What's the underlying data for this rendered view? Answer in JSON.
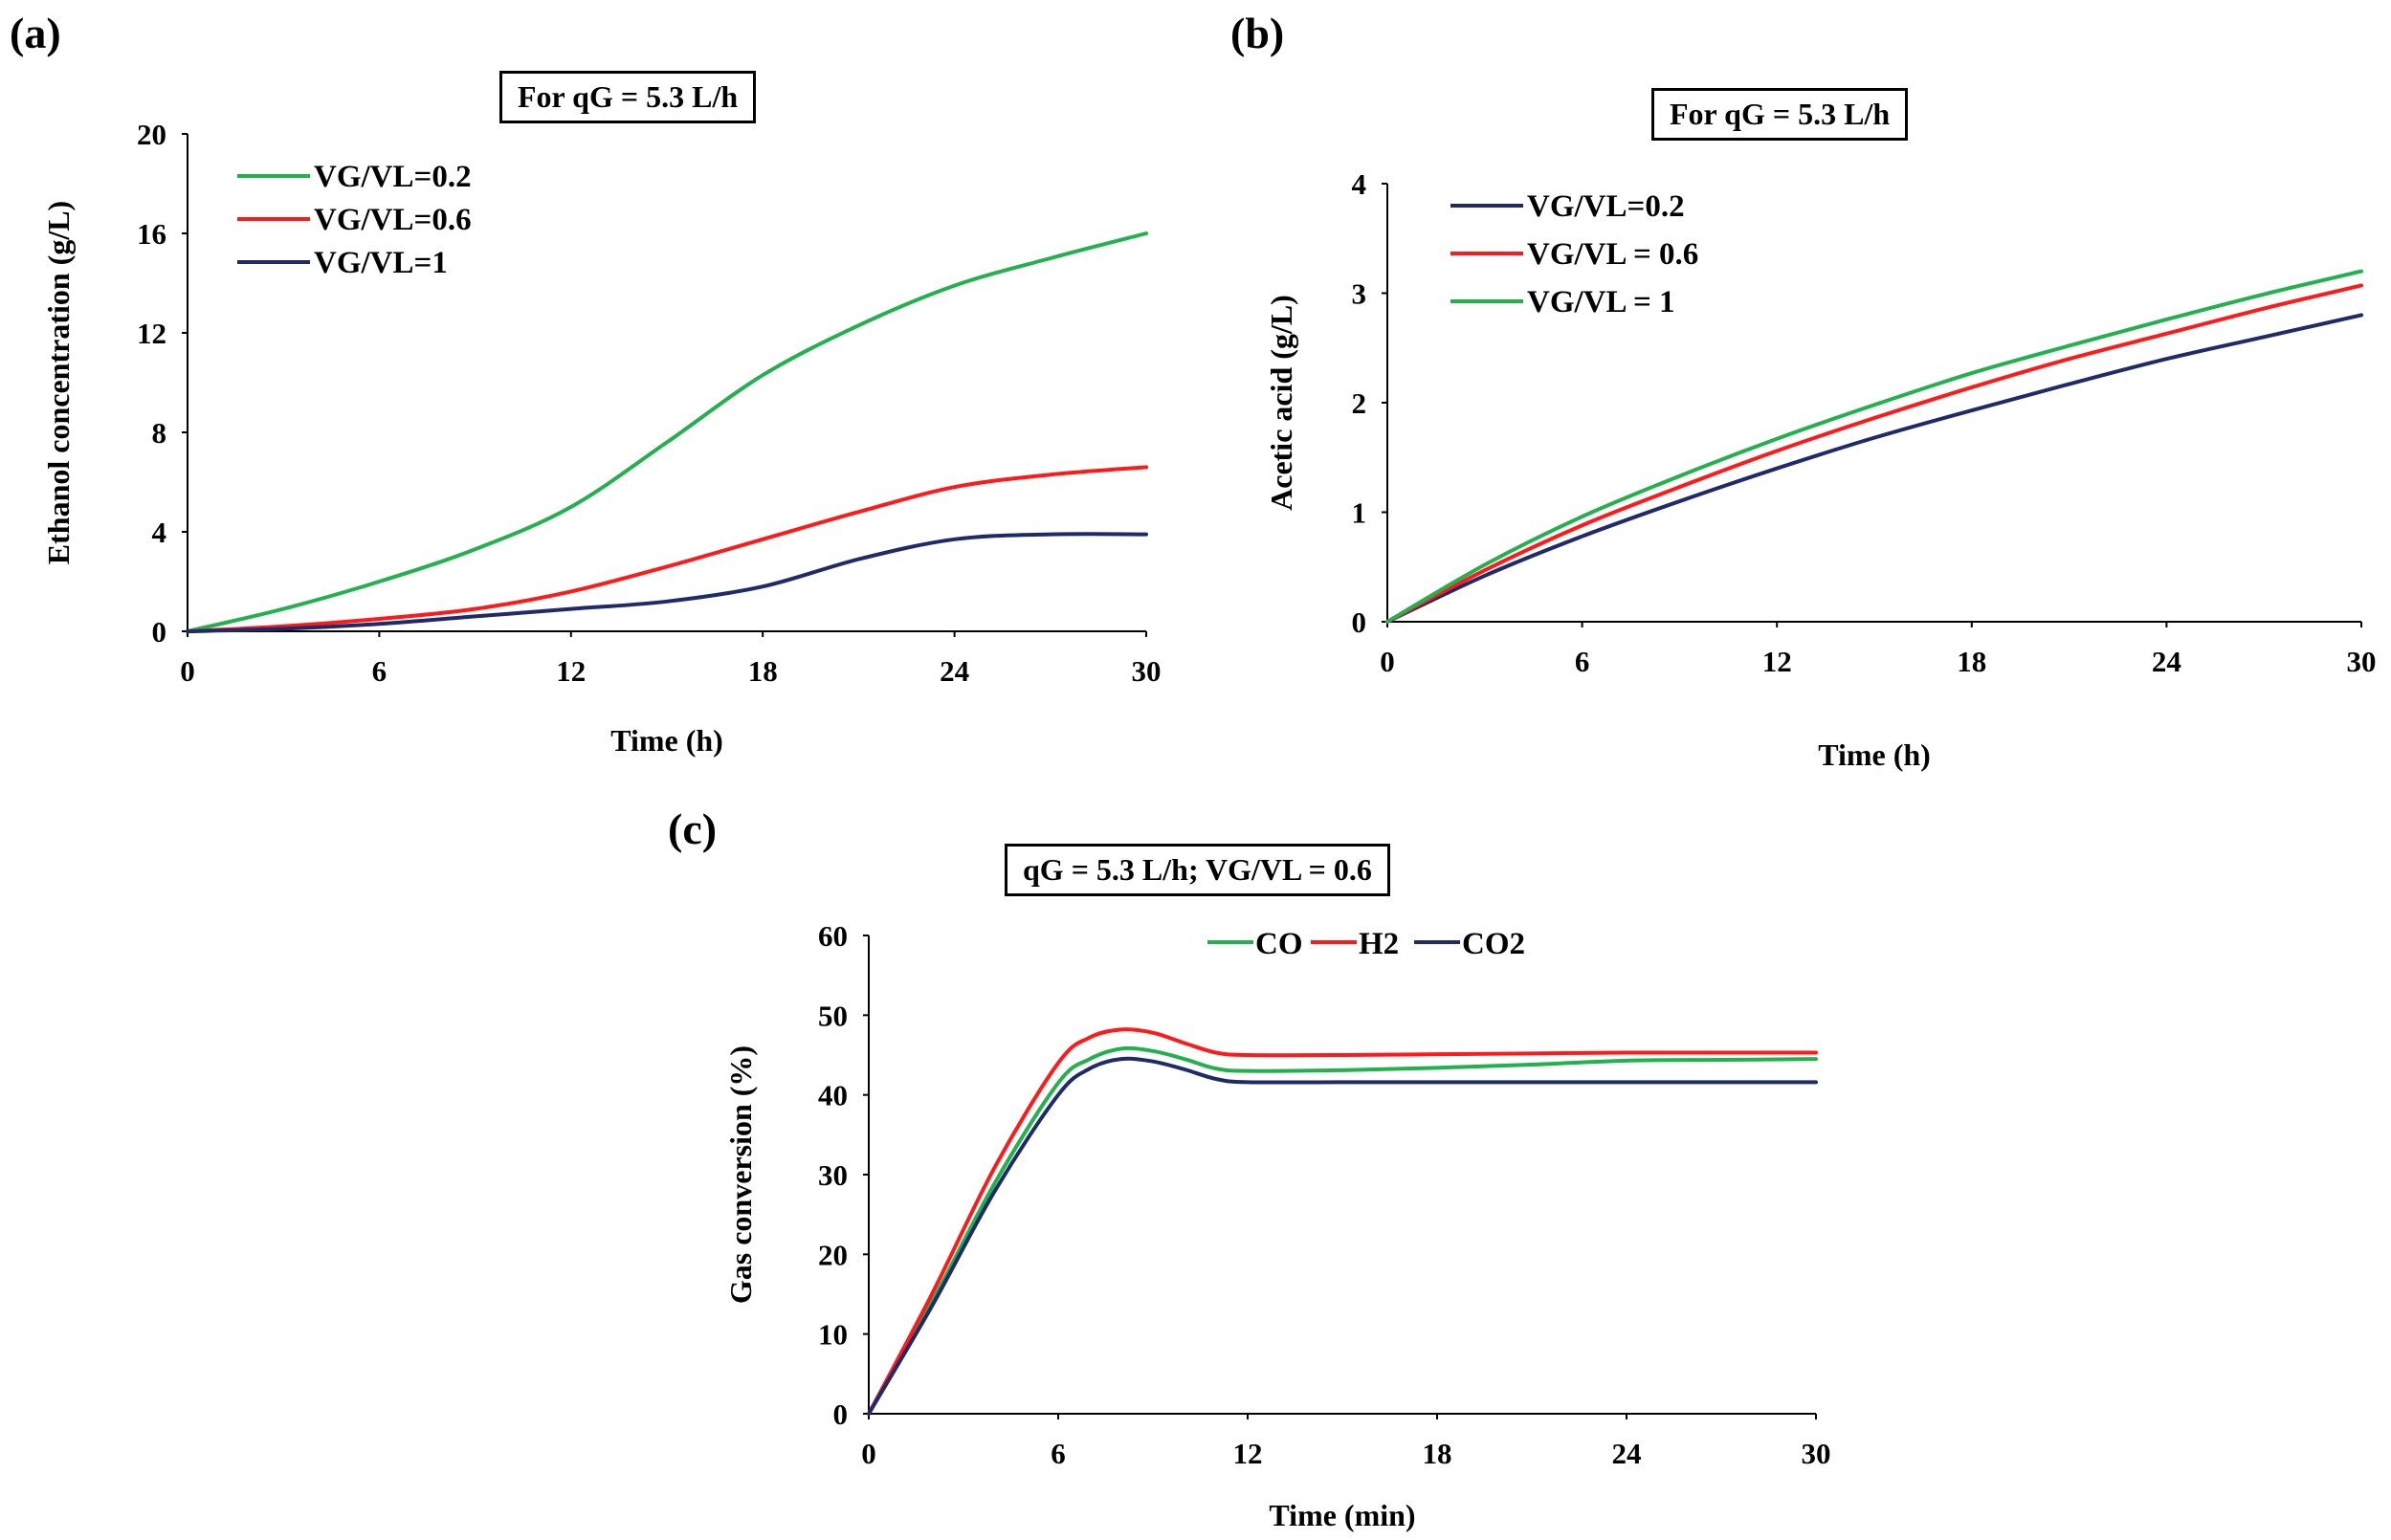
{
  "panels": {
    "a": {
      "letter": "(a)",
      "title": "For qG = 5.3 L/h"
    },
    "b": {
      "letter": "(b)",
      "title": "For qG = 5.3 L/h"
    },
    "c": {
      "letter": "(c)",
      "title": "qG = 5.3 L/h;  VG/VL = 0.6"
    }
  },
  "colors": {
    "green": "#22b14c",
    "red": "#ff1a1a",
    "navy": "#1f2a6b"
  },
  "chart_data": [
    {
      "id": "a",
      "type": "line",
      "title": "For qG = 5.3 L/h",
      "xlabel": "Time (h)",
      "ylabel": "Ethanol concentration (g/L)",
      "xlim": [
        0,
        30
      ],
      "ylim": [
        0,
        20
      ],
      "xticks": [
        0,
        6,
        12,
        18,
        24,
        30
      ],
      "yticks": [
        0,
        4,
        8,
        12,
        16,
        20
      ],
      "legend_position": "top-left",
      "series": [
        {
          "name": "VG/VL=0.2",
          "color": "#22b14c",
          "x": [
            0,
            3,
            6,
            9,
            12,
            15,
            18,
            21,
            24,
            27,
            30
          ],
          "y": [
            0,
            0.9,
            2.0,
            3.3,
            5.0,
            7.6,
            10.3,
            12.3,
            13.9,
            15.0,
            16.0
          ]
        },
        {
          "name": "VG/VL=0.6",
          "color": "#ff1a1a",
          "x": [
            0,
            3,
            6,
            9,
            12,
            15,
            18,
            21,
            24,
            27,
            30
          ],
          "y": [
            0,
            0.2,
            0.5,
            0.9,
            1.6,
            2.6,
            3.7,
            4.8,
            5.8,
            6.3,
            6.6
          ]
        },
        {
          "name": "VG/VL=1",
          "color": "#1f2a6b",
          "x": [
            0,
            3,
            6,
            9,
            12,
            15,
            18,
            21,
            24,
            27,
            30
          ],
          "y": [
            0,
            0.1,
            0.3,
            0.6,
            0.9,
            1.2,
            1.8,
            2.9,
            3.7,
            3.9,
            3.9
          ]
        }
      ]
    },
    {
      "id": "b",
      "type": "line",
      "title": "For qG = 5.3 L/h",
      "xlabel": "Time (h)",
      "ylabel": "Acetic acid (g/L)",
      "xlim": [
        0,
        30
      ],
      "ylim": [
        0,
        4
      ],
      "xticks": [
        0,
        6,
        12,
        18,
        24,
        30
      ],
      "yticks": [
        0,
        1,
        2,
        3,
        4
      ],
      "legend_position": "top-left",
      "series": [
        {
          "name": "VG/VL=0.2",
          "color": "#1f2a6b",
          "x": [
            0,
            3,
            6,
            9,
            12,
            15,
            18,
            21,
            24,
            27,
            30
          ],
          "y": [
            0,
            0.42,
            0.78,
            1.1,
            1.4,
            1.68,
            1.93,
            2.17,
            2.4,
            2.6,
            2.8
          ]
        },
        {
          "name": "VG/VL = 0.6",
          "color": "#ff1a1a",
          "x": [
            0,
            3,
            6,
            9,
            12,
            15,
            18,
            21,
            24,
            27,
            30
          ],
          "y": [
            0,
            0.47,
            0.88,
            1.23,
            1.56,
            1.86,
            2.14,
            2.4,
            2.63,
            2.86,
            3.07
          ]
        },
        {
          "name": "VG/VL = 1",
          "color": "#22b14c",
          "x": [
            0,
            3,
            6,
            9,
            12,
            15,
            18,
            21,
            24,
            27,
            30
          ],
          "y": [
            0,
            0.52,
            0.96,
            1.33,
            1.67,
            1.98,
            2.27,
            2.52,
            2.76,
            2.99,
            3.2
          ]
        }
      ]
    },
    {
      "id": "c",
      "type": "line",
      "title": "qG = 5.3 L/h;  VG/VL = 0.6",
      "xlabel": "Time (min)",
      "ylabel": "Gas conversion (%)",
      "xlim": [
        0,
        30
      ],
      "ylim": [
        0,
        60
      ],
      "xticks": [
        0,
        6,
        12,
        18,
        24,
        30
      ],
      "yticks": [
        0,
        10,
        20,
        30,
        40,
        50,
        60
      ],
      "legend_position": "top",
      "series": [
        {
          "name": "CO",
          "color": "#22b14c",
          "x": [
            0,
            2,
            4,
            6,
            7,
            8,
            9,
            10,
            11,
            12,
            15,
            18,
            21,
            24,
            27,
            30
          ],
          "y": [
            0,
            14,
            29,
            41.5,
            44.5,
            45.8,
            45.5,
            44.5,
            43.3,
            43,
            43.1,
            43.4,
            43.8,
            44.3,
            44.4,
            44.5
          ]
        },
        {
          "name": "H2",
          "color": "#ff1a1a",
          "x": [
            0,
            2,
            4,
            6,
            7,
            8,
            9,
            10,
            11,
            12,
            15,
            18,
            21,
            24,
            27,
            30
          ],
          "y": [
            0,
            15,
            31,
            44,
            47.2,
            48.2,
            47.8,
            46.5,
            45.3,
            45,
            45,
            45.1,
            45.2,
            45.3,
            45.3,
            45.3
          ]
        },
        {
          "name": "CO2",
          "color": "#1f2a6b",
          "x": [
            0,
            2,
            4,
            6,
            7,
            8,
            9,
            10,
            11,
            12,
            15,
            18,
            21,
            24,
            27,
            30
          ],
          "y": [
            0,
            13.5,
            28,
            40,
            43.3,
            44.5,
            44.2,
            43.2,
            42,
            41.6,
            41.6,
            41.6,
            41.6,
            41.6,
            41.6,
            41.6
          ]
        }
      ]
    }
  ]
}
